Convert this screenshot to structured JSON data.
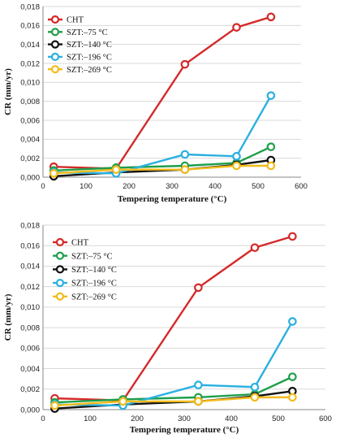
{
  "chart_data": [
    {
      "type": "line",
      "title": "",
      "xlabel": "Tempering temperature (°C)",
      "ylabel": "CR (mm/yr)",
      "xlim": [
        0,
        600
      ],
      "ylim": [
        0,
        0.018
      ],
      "xticks": [
        "0",
        "100",
        "200",
        "300",
        "400",
        "500",
        "600"
      ],
      "yticks": [
        "0,000",
        "0,002",
        "0,004",
        "0,006",
        "0,008",
        "0,010",
        "0,012",
        "0,014",
        "0,016",
        "0,018"
      ],
      "grid": "horizontal",
      "legend_position": "top-left",
      "series": [
        {
          "name": "CHT",
          "color": "#d42a2a",
          "x": [
            25,
            170,
            330,
            450,
            530
          ],
          "y": [
            0.0011,
            0.0009,
            0.0119,
            0.0158,
            0.0169
          ]
        },
        {
          "name": "SZT:–75 °C",
          "color": "#1e9e4a",
          "x": [
            25,
            170,
            330,
            450,
            530
          ],
          "y": [
            0.0007,
            0.001,
            0.0012,
            0.0015,
            0.0032
          ]
        },
        {
          "name": "SZT:–140 °C",
          "color": "#111111",
          "x": [
            25,
            170,
            330,
            450,
            530
          ],
          "y": [
            0.0001,
            0.0005,
            0.0008,
            0.0013,
            0.0018
          ]
        },
        {
          "name": "SZT:–196 °C",
          "color": "#2ab0e0",
          "x": [
            25,
            170,
            330,
            450,
            530
          ],
          "y": [
            0.0005,
            0.0004,
            0.0024,
            0.0022,
            0.0086
          ]
        },
        {
          "name": "SZT:–269 °C",
          "color": "#f2bb1a",
          "x": [
            25,
            170,
            330,
            450,
            530
          ],
          "y": [
            0.0004,
            0.0008,
            0.0008,
            0.0012,
            0.0012
          ]
        }
      ]
    },
    {
      "type": "line",
      "title": "",
      "xlabel": "Tempering temperature (°C)",
      "ylabel": "CR (mm/yr)",
      "xlim": [
        0,
        600
      ],
      "ylim": [
        0,
        0.018
      ],
      "xticks": [
        "0",
        "100",
        "200",
        "300",
        "400",
        "500",
        "600"
      ],
      "yticks": [
        "0,000",
        "0,002",
        "0,004",
        "0,006",
        "0,008",
        "0,010",
        "0,012",
        "0,014",
        "0,016",
        "0,018"
      ],
      "grid": "horizontal",
      "legend_position": "top-left",
      "series": [
        {
          "name": "CHT",
          "color": "#d42a2a",
          "x": [
            25,
            170,
            330,
            450,
            530
          ],
          "y": [
            0.0011,
            0.0009,
            0.0119,
            0.0158,
            0.0169
          ]
        },
        {
          "name": "SZT:–75 °C",
          "color": "#1e9e4a",
          "x": [
            25,
            170,
            330,
            450,
            530
          ],
          "y": [
            0.0007,
            0.001,
            0.0012,
            0.0015,
            0.0032
          ]
        },
        {
          "name": "SZT:–140 °C",
          "color": "#111111",
          "x": [
            25,
            170,
            330,
            450,
            530
          ],
          "y": [
            0.0001,
            0.0005,
            0.0008,
            0.0013,
            0.0018
          ]
        },
        {
          "name": "SZT:–196 °C",
          "color": "#2ab0e0",
          "x": [
            25,
            170,
            330,
            450,
            530
          ],
          "y": [
            0.0005,
            0.0004,
            0.0024,
            0.0022,
            0.0086
          ]
        },
        {
          "name": "SZT:–269 °C",
          "color": "#f2bb1a",
          "x": [
            25,
            170,
            330,
            450,
            530
          ],
          "y": [
            0.0004,
            0.0008,
            0.0008,
            0.0012,
            0.0012
          ]
        }
      ]
    }
  ]
}
